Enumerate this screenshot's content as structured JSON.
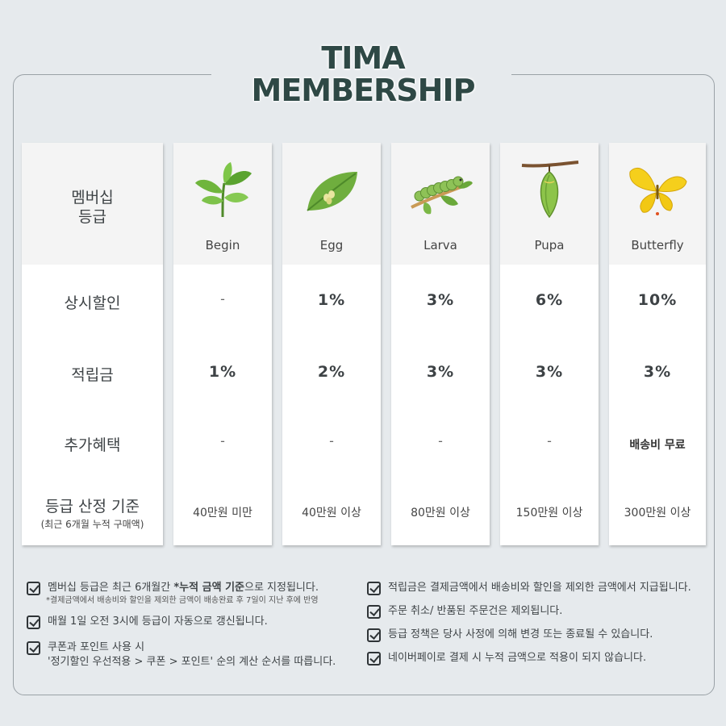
{
  "title_line1": "TIMA",
  "title_line2": "MEMBERSHIP",
  "header_label": "멤버십\n등급",
  "row_labels": {
    "discount": "상시할인",
    "points": "적립금",
    "extra": "추가혜택",
    "criteria_main": "등급 산정 기준",
    "criteria_sub": "(최근 6개월 누적 구매액)"
  },
  "tiers": [
    {
      "name": "Begin",
      "icon": "sprout-icon",
      "discount": "-",
      "points": "1%",
      "extra": "-",
      "criteria": "40만원 미만"
    },
    {
      "name": "Egg",
      "icon": "leaf-egg-icon",
      "discount": "1%",
      "points": "2%",
      "extra": "-",
      "criteria": "40만원 이상"
    },
    {
      "name": "Larva",
      "icon": "caterpillar-icon",
      "discount": "3%",
      "points": "3%",
      "extra": "-",
      "criteria": "80만원 이상"
    },
    {
      "name": "Pupa",
      "icon": "chrysalis-icon",
      "discount": "6%",
      "points": "3%",
      "extra": "-",
      "criteria": "150만원 이상"
    },
    {
      "name": "Butterfly",
      "icon": "butterfly-icon",
      "discount": "10%",
      "points": "3%",
      "extra": "배송비 무료",
      "criteria": "300만원 이상"
    }
  ],
  "notes_left": [
    {
      "pre": "멤버십 등급은 최근 6개월간 ",
      "bold": "*누적 금액 기준",
      "post": "으로 지정됩니다.",
      "sub": "*결제금액에서 배송비와 할인을 제외한 금액이 배송완료 후 7일이 지난 후에 반영"
    },
    {
      "pre": "매월 1일 오전 3시에 등급이 자동으로 갱신됩니다.",
      "bold": "",
      "post": "",
      "sub": ""
    },
    {
      "pre": "쿠폰과 포인트 사용 시",
      "bold": "",
      "post": "",
      "sub2": "'정기할인 우선적용 > 쿠폰 > 포인트' 순의 계산 순서를 따릅니다."
    }
  ],
  "notes_right": [
    "적립금은 결제금액에서 배송비와 할인을 제외한 금액에서 지급됩니다.",
    "주문 취소/ 반품된 주문건은 제외됩니다.",
    "등급 정책은 당사 사정에 의해 변경 또는 종료될 수 있습니다.",
    "네이버페이로 결제 시 누적 금액으로 적용이 되지 않습니다."
  ],
  "colors": {
    "background": "#e6eaed",
    "title": "#2e4845",
    "leaf": "#6fb53c",
    "butterfly": "#f2c814"
  }
}
